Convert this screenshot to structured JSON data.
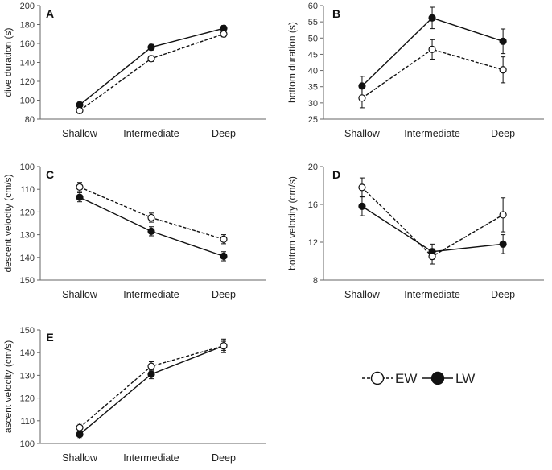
{
  "categories": [
    "Shallow",
    "Intermediate",
    "Deep"
  ],
  "legend": [
    {
      "name": "EW",
      "style": "dashed",
      "marker": "open"
    },
    {
      "name": "LW",
      "style": "solid",
      "marker": "filled"
    }
  ],
  "colors": {
    "line": "#111111",
    "open_fill": "#ffffff",
    "filled": "#111111",
    "axis": "#666666"
  },
  "chart_data": [
    {
      "type": "line",
      "panel": "A",
      "ylabel": "dive duration (s)",
      "ylim": [
        80,
        200
      ],
      "yticks": [
        80,
        100,
        120,
        140,
        160,
        180,
        200
      ],
      "reversed": false,
      "categories": [
        "Shallow",
        "Intermediate",
        "Deep"
      ],
      "series": [
        {
          "name": "EW",
          "values": [
            89,
            144,
            170
          ],
          "errors": [
            3,
            3,
            3
          ]
        },
        {
          "name": "LW",
          "values": [
            95,
            156,
            176
          ],
          "errors": [
            3,
            3,
            3
          ]
        }
      ]
    },
    {
      "type": "line",
      "panel": "B",
      "ylabel": "bottom duration (s)",
      "ylim": [
        25,
        60
      ],
      "yticks": [
        25,
        30,
        35,
        40,
        45,
        50,
        55,
        60
      ],
      "reversed": false,
      "categories": [
        "Shallow",
        "Intermediate",
        "Deep"
      ],
      "series": [
        {
          "name": "EW",
          "values": [
            31.5,
            46.5,
            40.2
          ],
          "errors": [
            3,
            3,
            4
          ]
        },
        {
          "name": "LW",
          "values": [
            35.2,
            56.2,
            49.0
          ],
          "errors": [
            3,
            3.3,
            3.8
          ]
        }
      ]
    },
    {
      "type": "line",
      "panel": "C",
      "ylabel": "descent velocity (cm/s)",
      "ylim": [
        100,
        150
      ],
      "yticks": [
        100,
        110,
        120,
        130,
        140,
        150
      ],
      "reversed": true,
      "categories": [
        "Shallow",
        "Intermediate",
        "Deep"
      ],
      "series": [
        {
          "name": "EW",
          "values": [
            109,
            122.5,
            132
          ],
          "errors": [
            2,
            2,
            2
          ]
        },
        {
          "name": "LW",
          "values": [
            113.5,
            128.5,
            139.5
          ],
          "errors": [
            2,
            2,
            2
          ]
        }
      ]
    },
    {
      "type": "line",
      "panel": "D",
      "ylabel": "bottom velocity (cm/s)",
      "ylim": [
        8,
        20
      ],
      "yticks": [
        8,
        12,
        16,
        20
      ],
      "reversed": false,
      "categories": [
        "Shallow",
        "Intermediate",
        "Deep"
      ],
      "series": [
        {
          "name": "EW",
          "values": [
            17.8,
            10.5,
            14.9
          ],
          "errors": [
            1.0,
            0.8,
            1.8
          ]
        },
        {
          "name": "LW",
          "values": [
            15.8,
            11.0,
            11.8
          ],
          "errors": [
            1.0,
            0.8,
            1.0
          ]
        }
      ]
    },
    {
      "type": "line",
      "panel": "E",
      "ylabel": "ascent velocity (cm/s)",
      "ylim": [
        100,
        150
      ],
      "yticks": [
        100,
        110,
        120,
        130,
        140,
        150
      ],
      "reversed": false,
      "categories": [
        "Shallow",
        "Intermediate",
        "Deep"
      ],
      "series": [
        {
          "name": "EW",
          "values": [
            107,
            134,
            143
          ],
          "errors": [
            2,
            2,
            2
          ]
        },
        {
          "name": "LW",
          "values": [
            104,
            130.5,
            143
          ],
          "errors": [
            2,
            2,
            3
          ]
        }
      ]
    }
  ]
}
